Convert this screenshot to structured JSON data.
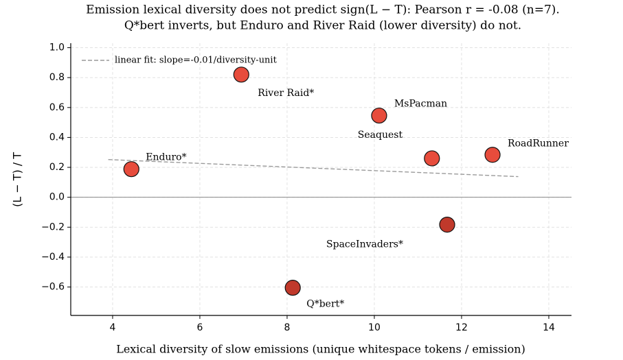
{
  "chart_data": {
    "type": "scatter",
    "title": [
      "Emission lexical diversity does not predict sign(L − T): Pearson r = -0.08 (n=7).",
      "Q*bert inverts, but Enduro and River Raid (lower diversity) do not."
    ],
    "xlabel": "Lexical diversity of slow emissions  (unique whitespace tokens / emission)",
    "ylabel": "(L − T) / T",
    "labels": [
      "Enduro*",
      "River Raid*",
      "MsPacman",
      "Seaquest",
      "RoadRunner",
      "SpaceInvaders*",
      "Q*bert*"
    ],
    "x": [
      4.43,
      6.95,
      10.11,
      11.32,
      12.71,
      11.67,
      8.13
    ],
    "values": [
      0.188,
      0.82,
      0.546,
      0.26,
      0.284,
      -0.183,
      -0.605
    ],
    "colors": [
      "#e74c3c",
      "#e74c3c",
      "#e74c3c",
      "#e74c3c",
      "#e74c3c",
      "#c0392b",
      "#c0392b"
    ],
    "fit": {
      "name": "linear fit: slope=-0.01/diversity-unit",
      "x": [
        3.9,
        13.3
      ],
      "values": [
        0.252,
        0.138
      ],
      "color": "#999999"
    },
    "xlim": [
      3.04,
      14.52
    ],
    "ylim": [
      -0.79,
      1.03
    ],
    "xticks": [
      4,
      6,
      8,
      10,
      12,
      14
    ],
    "yticks": [
      {
        "value": -0.6,
        "label": "−0.6"
      },
      {
        "value": -0.4,
        "label": "−0.4"
      },
      {
        "value": -0.2,
        "label": "−0.2"
      },
      {
        "value": 0.0,
        "label": "0.0"
      },
      0.2,
      0.4,
      0.6,
      0.8,
      {
        "value": 1.0,
        "label": "1.0"
      }
    ],
    "grid": true,
    "legend": "upper left"
  }
}
